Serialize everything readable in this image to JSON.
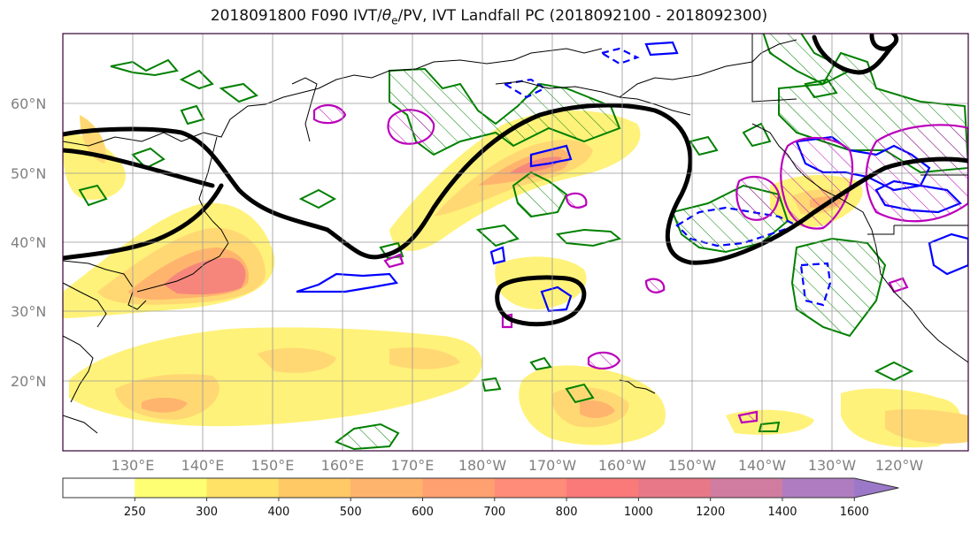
{
  "title": {
    "prefix": "2018091800 F090 IVT/",
    "theta_symbol": "θ",
    "theta_sub": "e",
    "suffix": "/PV, IVT Landfall PC (2018092100 - 2018092300)"
  },
  "lat_labels": [
    "60°N",
    "50°N",
    "40°N",
    "30°N",
    "20°N"
  ],
  "lon_labels": [
    "130°E",
    "140°E",
    "150°E",
    "160°E",
    "170°E",
    "180°W",
    "170°W",
    "160°W",
    "150°W",
    "140°W",
    "130°W",
    "120°W"
  ],
  "colorbar": {
    "ticks": [
      "250",
      "300",
      "400",
      "500",
      "600",
      "700",
      "800",
      "1000",
      "1200",
      "1400",
      "1600"
    ],
    "colors": [
      "#ffffff",
      "#ffff73",
      "#ffe266",
      "#ffc966",
      "#ffb46e",
      "#ffa070",
      "#ff8c78",
      "#f97a78",
      "#e87888",
      "#d07ca0",
      "#b07cc0",
      "#9c78c8"
    ],
    "extend": "max"
  },
  "contour_colors": {
    "ivt_low": "#fff27a",
    "ivt_mid": "#ffc870",
    "ivt_high": "#f57e7e",
    "theta_e": "#000000",
    "pv_positive": "#0000ff",
    "pv_hatched": "#008000",
    "pc_positive": "#bb00bb"
  }
}
